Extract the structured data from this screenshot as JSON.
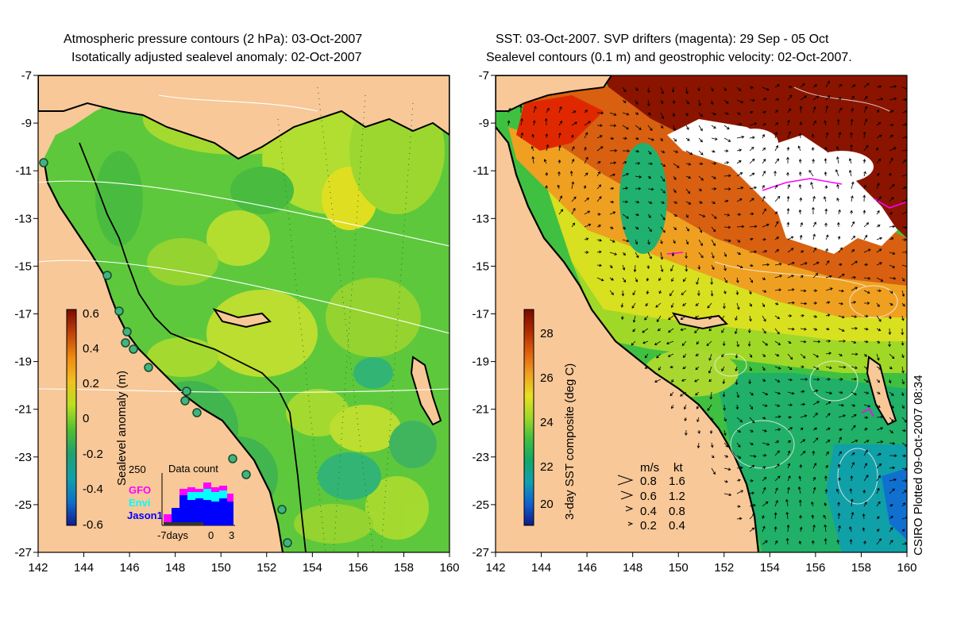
{
  "left_panel": {
    "title_line1": "Atmospheric pressure contours (2 hPa): 03-Oct-2007",
    "title_line2": "Isotatically adjusted sealevel anomaly: 02-Oct-2007",
    "colorbar_label": "Sealevel anomaly (m)",
    "colorbar_ticks": [
      "0.6",
      "0.4",
      "0.2",
      "0",
      "-0.2",
      "-0.4",
      "-0.6"
    ],
    "colorbar_colors": [
      "#7a0a00",
      "#c0430a",
      "#f08a10",
      "#f0c020",
      "#b8e020",
      "#50c030",
      "#20a070",
      "#10a0a8",
      "#1070c8",
      "#101c90"
    ],
    "inset": {
      "title": "Data count",
      "max_label": "250",
      "legend": [
        {
          "name": "GFO",
          "color": "#ff00ff"
        },
        {
          "name": "Envi",
          "color": "#00ffff"
        },
        {
          "name": "Jason1",
          "color": "#0000ff"
        }
      ],
      "xticks": [
        "-7days",
        "0",
        "3"
      ]
    }
  },
  "right_panel": {
    "title_line1": "SST: 03-Oct-2007. SVP drifters (magenta): 29 Sep - 05 Oct",
    "title_line2": "Sealevel contours (0.1 m) and geostrophic velocity: 02-Oct-2007.",
    "colorbar_label": "3-day SST composite (deg C)",
    "colorbar_ticks": [
      "28",
      "26",
      "24",
      "22",
      "20"
    ],
    "colorbar_colors": [
      "#7a0800",
      "#b02a00",
      "#e06010",
      "#f0a020",
      "#e8e020",
      "#a0d828",
      "#40c040",
      "#10a868",
      "#10a0b0",
      "#1060d0",
      "#101a88"
    ],
    "velocity_legend": {
      "header_ms": "m/s",
      "header_kt": "kt",
      "rows": [
        {
          "ms": "0.8",
          "kt": "1.6"
        },
        {
          "ms": "0.6",
          "kt": "1.2"
        },
        {
          "ms": "0.4",
          "kt": "0.8"
        },
        {
          "ms": "0.2",
          "kt": "0.4"
        }
      ]
    }
  },
  "axes": {
    "lat_ticks": [
      "-7",
      "-9",
      "-11",
      "-13",
      "-15",
      "-17",
      "-19",
      "-21",
      "-23",
      "-25",
      "-27"
    ],
    "lon_ticks": [
      "142",
      "144",
      "146",
      "148",
      "150",
      "152",
      "154",
      "156",
      "158",
      "160"
    ]
  },
  "footer": {
    "plotted": "CSIRO Plotted 09-Oct-2007 08:34"
  },
  "colors": {
    "land": "#f8c898",
    "sea_green": "#60c840",
    "sea_yellow": "#c8e830",
    "cloud": "#ffffff",
    "sst_hot": "#9a1000",
    "drifter": "#ff00ff"
  }
}
